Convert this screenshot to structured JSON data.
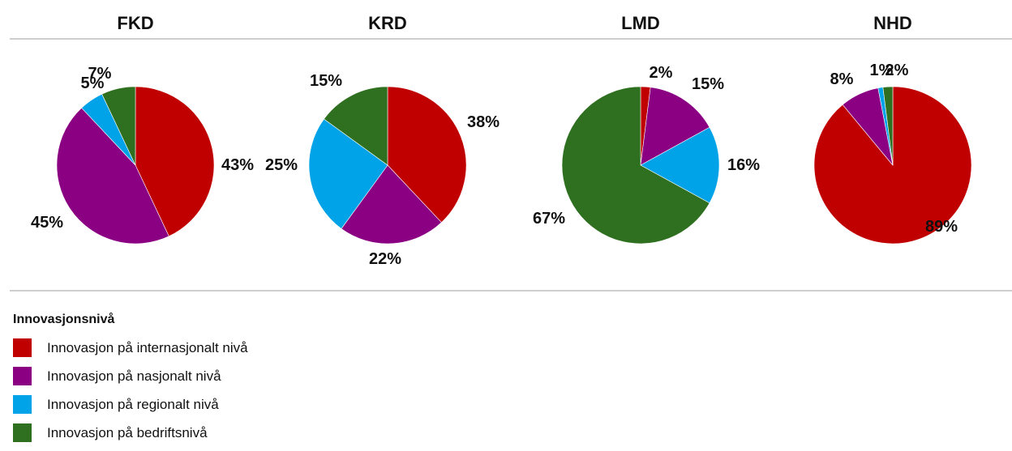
{
  "chart_data": {
    "type": "pie",
    "categories": [
      "Innovasjon på internasjonalt nivå",
      "Innovasjon på nasjonalt nivå",
      "Innovasjon på regionalt nivå",
      "Innovasjon på bedriftsnivå"
    ],
    "colors": [
      "#c00000",
      "#8b0083",
      "#00a2e8",
      "#2f7020"
    ],
    "panels": [
      {
        "title": "FKD",
        "values": [
          43,
          45,
          5,
          7
        ],
        "labels": [
          "43%",
          "45%",
          "5%",
          "7%"
        ]
      },
      {
        "title": "KRD",
        "values": [
          38,
          22,
          25,
          15
        ],
        "labels": [
          "38%",
          "22%",
          "25%",
          "15%"
        ]
      },
      {
        "title": "LMD",
        "values": [
          2,
          15,
          16,
          67
        ],
        "labels": [
          "2%",
          "15%",
          "16%",
          "67%"
        ]
      },
      {
        "title": "NHD",
        "values": [
          89,
          8,
          1,
          2
        ],
        "labels": [
          "89%",
          "8%",
          "1%",
          "2%"
        ]
      }
    ],
    "legend": {
      "title": "Innovasjonsnivå",
      "placement": "bottom-left"
    }
  }
}
